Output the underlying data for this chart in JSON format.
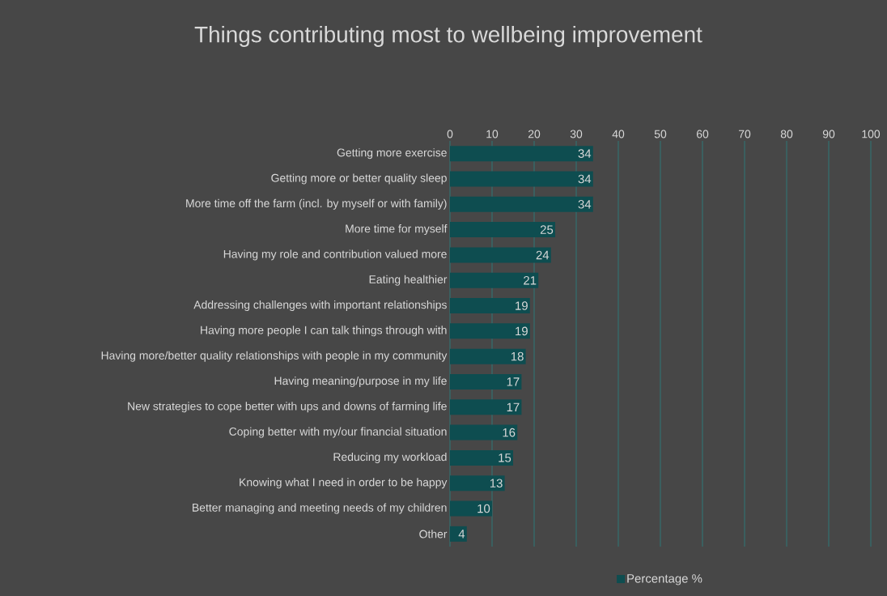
{
  "chart_data": {
    "type": "bar",
    "orientation": "horizontal",
    "title": "Things contributing most to wellbeing improvement",
    "categories": [
      "Getting more exercise",
      "Getting more or better quality sleep",
      "More time off the farm (incl. by myself or with family)",
      "More time for myself",
      "Having my role and contribution valued more",
      "Eating healthier",
      "Addressing challenges with important relationships",
      "Having more people I can talk things through with",
      "Having more/better quality relationships with people in my community",
      "Having meaning/purpose in my life",
      "New strategies to cope better with ups and downs of farming life",
      "Coping better with my/our financial situation",
      "Reducing my workload",
      "Knowing what I need in order to be happy",
      "Better managing and meeting needs of my children",
      "Other"
    ],
    "series": [
      {
        "name": "Percentage %",
        "color": "#0e4d50",
        "values": [
          34,
          34,
          34,
          25,
          24,
          21,
          19,
          19,
          18,
          17,
          17,
          16,
          15,
          13,
          10,
          4
        ]
      }
    ],
    "xlim": [
      0,
      100
    ],
    "xticks": [
      0,
      10,
      20,
      30,
      40,
      50,
      60,
      70,
      80,
      90,
      100
    ],
    "grid": "x",
    "legend": "bottom",
    "data_labels": true
  }
}
